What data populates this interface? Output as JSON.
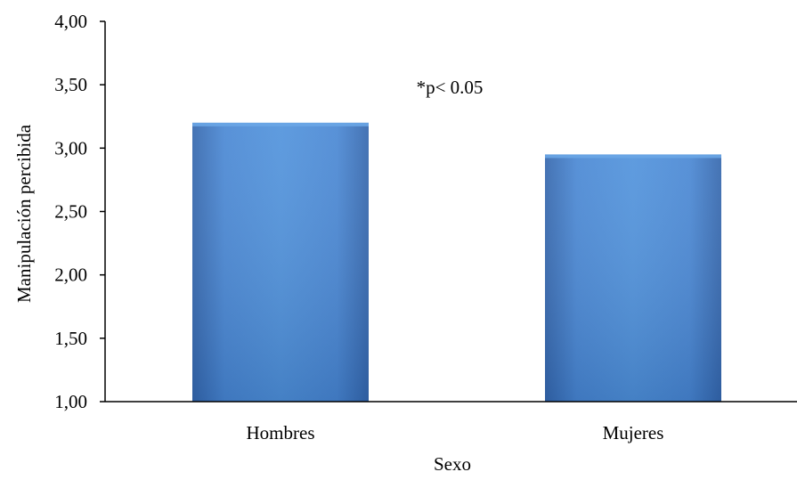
{
  "chart_data": {
    "type": "bar",
    "title": "",
    "xlabel": "Sexo",
    "ylabel": "Manipulación percibida",
    "categories": [
      "Hombres",
      "Mujeres"
    ],
    "values": [
      3.2,
      2.95
    ],
    "ylim": [
      1.0,
      4.0
    ],
    "yticks": [
      "1,00",
      "1,50",
      "2,00",
      "2,50",
      "3,00",
      "3,50",
      "4,00"
    ],
    "ytick_values": [
      1.0,
      1.5,
      2.0,
      2.5,
      3.0,
      3.5,
      4.0
    ],
    "annotation": "*p< 0.05",
    "grid": false,
    "legend": "none",
    "bar_color": "#3f7fd0"
  }
}
